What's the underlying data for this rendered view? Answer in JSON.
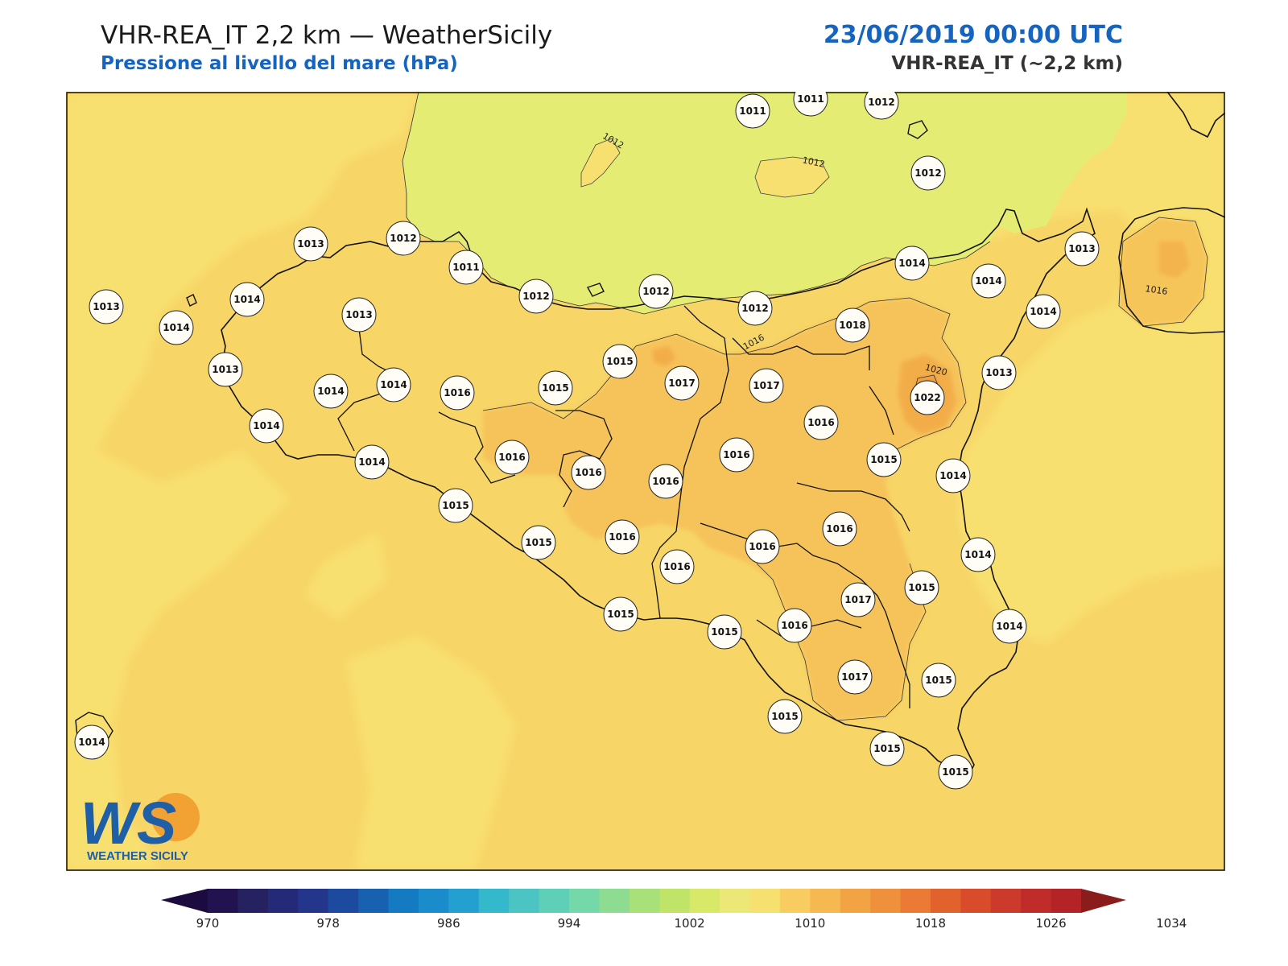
{
  "header": {
    "title": "VHR-REA_IT 2,2 km — WeatherSicily",
    "subtitle": "Pressione al livello del mare (hPa)",
    "datetime": "23/06/2019 00:00 UTC",
    "model": "VHR-REA_IT (~2,2 km)"
  },
  "logo": {
    "letters": "WS",
    "text": "WEATHER SICILY"
  },
  "isobar_labels": [
    "1012",
    "1012",
    "1016",
    "1016",
    "1020"
  ],
  "stations": [
    {
      "value": "1011",
      "pos": [
        935,
        138
      ]
    },
    {
      "value": "1011",
      "pos": [
        1007,
        123
      ]
    },
    {
      "value": "1012",
      "pos": [
        1095,
        127
      ]
    },
    {
      "value": "1012",
      "pos": [
        1153,
        215
      ]
    },
    {
      "value": "1013",
      "pos": [
        386,
        303
      ]
    },
    {
      "value": "1012",
      "pos": [
        501,
        296
      ]
    },
    {
      "value": "1011",
      "pos": [
        579,
        332
      ]
    },
    {
      "value": "1012",
      "pos": [
        666,
        368
      ]
    },
    {
      "value": "1012",
      "pos": [
        815,
        362
      ]
    },
    {
      "value": "1012",
      "pos": [
        938,
        383
      ]
    },
    {
      "value": "1014",
      "pos": [
        1133,
        327
      ]
    },
    {
      "value": "1014",
      "pos": [
        1228,
        349
      ]
    },
    {
      "value": "1013",
      "pos": [
        1344,
        309
      ]
    },
    {
      "value": "1014",
      "pos": [
        1296,
        387
      ]
    },
    {
      "value": "1013",
      "pos": [
        132,
        381
      ]
    },
    {
      "value": "1014",
      "pos": [
        307,
        372
      ]
    },
    {
      "value": "1014",
      "pos": [
        219,
        407
      ]
    },
    {
      "value": "1013",
      "pos": [
        446,
        391
      ]
    },
    {
      "value": "1018",
      "pos": [
        1059,
        404
      ]
    },
    {
      "value": "1013",
      "pos": [
        280,
        459
      ]
    },
    {
      "value": "1015",
      "pos": [
        770,
        449
      ]
    },
    {
      "value": "1014",
      "pos": [
        411,
        486
      ]
    },
    {
      "value": "1014",
      "pos": [
        489,
        478
      ]
    },
    {
      "value": "1016",
      "pos": [
        568,
        488
      ]
    },
    {
      "value": "1015",
      "pos": [
        690,
        482
      ]
    },
    {
      "value": "1017",
      "pos": [
        847,
        476
      ]
    },
    {
      "value": "1017",
      "pos": [
        952,
        479
      ]
    },
    {
      "value": "1022",
      "pos": [
        1152,
        494
      ]
    },
    {
      "value": "1013",
      "pos": [
        1241,
        463
      ]
    },
    {
      "value": "1014",
      "pos": [
        331,
        529
      ]
    },
    {
      "value": "1016",
      "pos": [
        1020,
        525
      ]
    },
    {
      "value": "1016",
      "pos": [
        636,
        568
      ]
    },
    {
      "value": "1016",
      "pos": [
        915,
        565
      ]
    },
    {
      "value": "1015",
      "pos": [
        1098,
        571
      ]
    },
    {
      "value": "1014",
      "pos": [
        462,
        574
      ]
    },
    {
      "value": "1016",
      "pos": [
        731,
        587
      ]
    },
    {
      "value": "1016",
      "pos": [
        827,
        598
      ]
    },
    {
      "value": "1014",
      "pos": [
        1184,
        591
      ]
    },
    {
      "value": "1015",
      "pos": [
        566,
        628
      ]
    },
    {
      "value": "1016",
      "pos": [
        1043,
        657
      ]
    },
    {
      "value": "1015",
      "pos": [
        669,
        674
      ]
    },
    {
      "value": "1016",
      "pos": [
        773,
        667
      ]
    },
    {
      "value": "1016",
      "pos": [
        947,
        679
      ]
    },
    {
      "value": "1014",
      "pos": [
        1215,
        689
      ]
    },
    {
      "value": "1016",
      "pos": [
        841,
        704
      ]
    },
    {
      "value": "1015",
      "pos": [
        1145,
        730
      ]
    },
    {
      "value": "1017",
      "pos": [
        1066,
        745
      ]
    },
    {
      "value": "1015",
      "pos": [
        771,
        763
      ]
    },
    {
      "value": "1016",
      "pos": [
        987,
        777
      ]
    },
    {
      "value": "1015",
      "pos": [
        900,
        785
      ]
    },
    {
      "value": "1014",
      "pos": [
        1254,
        778
      ]
    },
    {
      "value": "1017",
      "pos": [
        1062,
        841
      ]
    },
    {
      "value": "1015",
      "pos": [
        1166,
        845
      ]
    },
    {
      "value": "1015",
      "pos": [
        975,
        890
      ]
    },
    {
      "value": "1014",
      "pos": [
        114,
        922
      ]
    },
    {
      "value": "1015",
      "pos": [
        1102,
        930
      ]
    },
    {
      "value": "1015",
      "pos": [
        1187,
        959
      ]
    }
  ],
  "colorbar": {
    "colors": [
      "#231250",
      "#262262",
      "#252a78",
      "#24358c",
      "#1c4a9e",
      "#1860b0",
      "#147ac2",
      "#1a8ccc",
      "#24a0d0",
      "#34b8cc",
      "#4cc4c4",
      "#5ed0b8",
      "#74d8a8",
      "#8edc92",
      "#a8e07a",
      "#c0e468",
      "#d8e868",
      "#ece878",
      "#f6e070",
      "#f8cc60",
      "#f6b850",
      "#f2a444",
      "#ee903c",
      "#ea7a34",
      "#e2622e",
      "#d84c2c",
      "#cc3a2c",
      "#c02c2a",
      "#b42426"
    ],
    "min_color": "#1b0b3f",
    "max_color": "#8b1c1c",
    "ticks": [
      "970",
      "978",
      "986",
      "994",
      "1002",
      "1010",
      "1018",
      "1026",
      "1034"
    ]
  }
}
